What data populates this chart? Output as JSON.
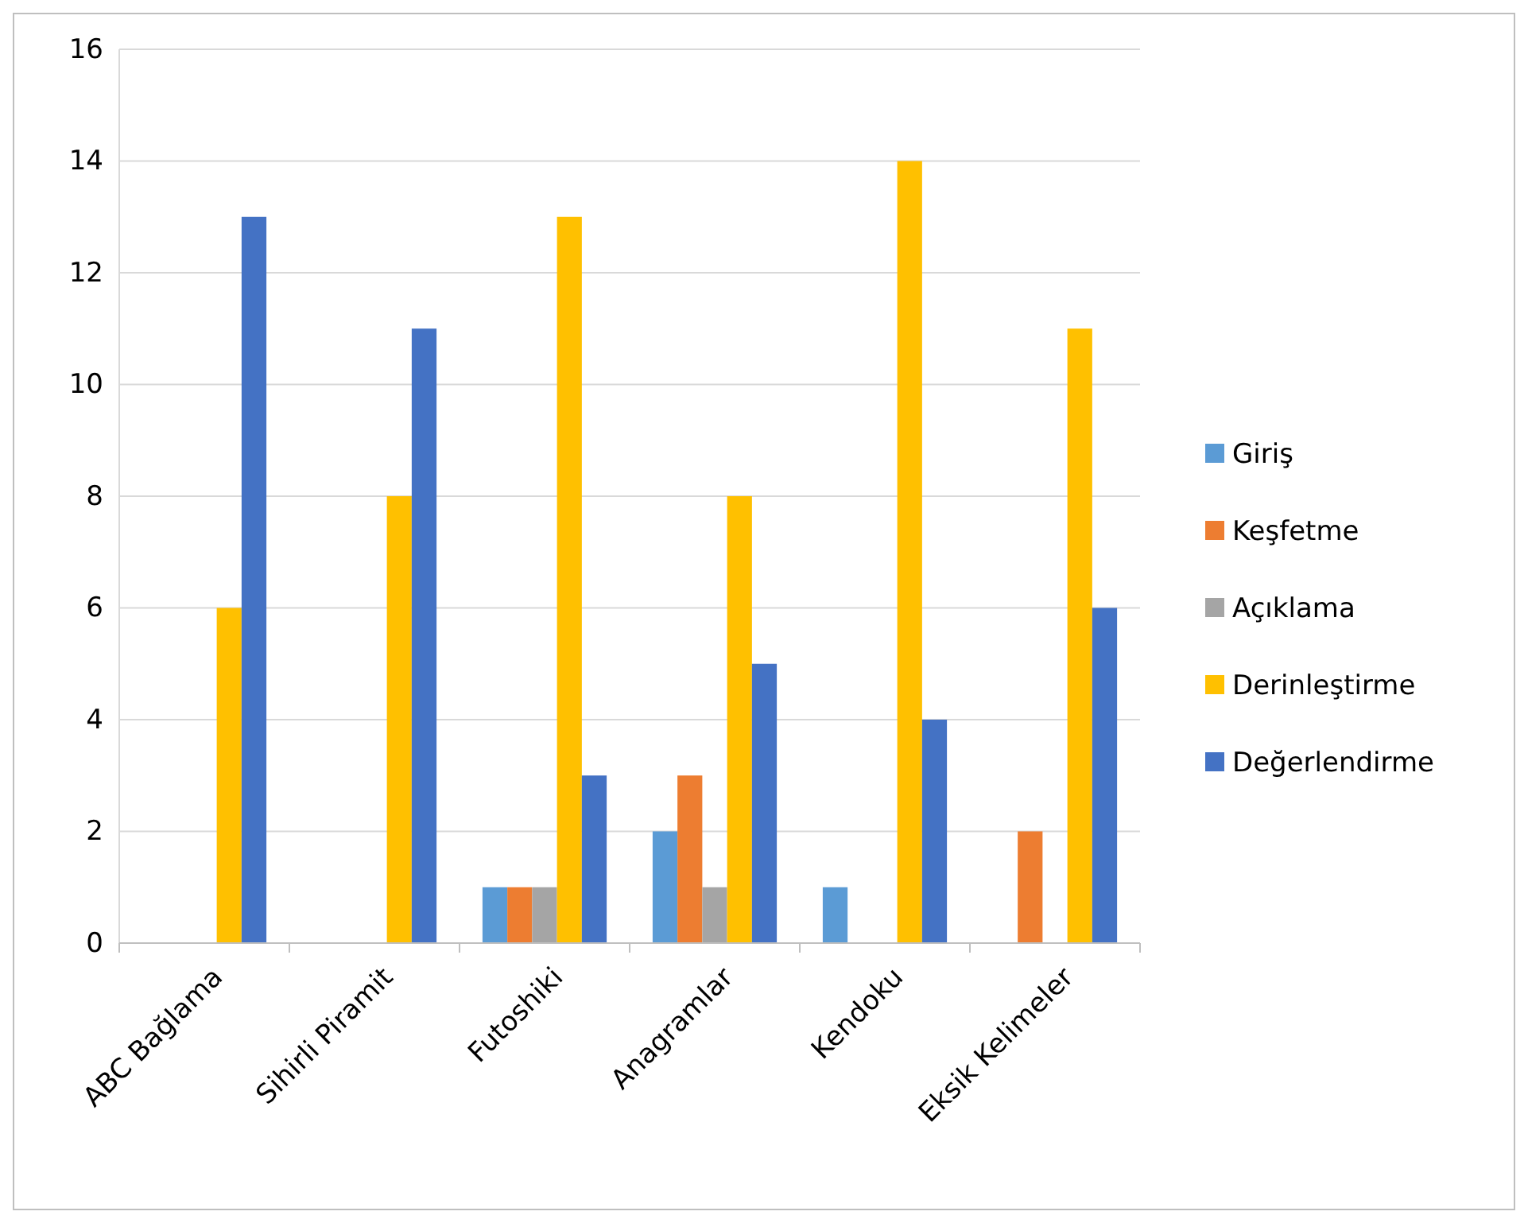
{
  "chart_data": {
    "type": "bar",
    "categories": [
      "ABC Bağlama",
      "Sihirli Piramit",
      "Futoshiki",
      "Anagramlar",
      "Kendoku",
      "Eksik Kelimeler"
    ],
    "series": [
      {
        "name": "Giriş",
        "color": "#5b9bd5",
        "values": [
          0,
          0,
          1,
          2,
          1,
          0
        ]
      },
      {
        "name": "Keşfetme",
        "color": "#ed7d31",
        "values": [
          0,
          0,
          1,
          3,
          0,
          2
        ]
      },
      {
        "name": "Açıklama",
        "color": "#a5a5a5",
        "values": [
          0,
          0,
          1,
          1,
          0,
          0
        ]
      },
      {
        "name": "Derinleştirme",
        "color": "#ffc000",
        "values": [
          6,
          8,
          13,
          8,
          14,
          11
        ]
      },
      {
        "name": "Değerlendirme",
        "color": "#4472c4",
        "values": [
          13,
          11,
          3,
          5,
          4,
          6
        ]
      }
    ],
    "ylim": [
      0,
      16
    ],
    "yticks": [
      0,
      2,
      4,
      6,
      8,
      10,
      12,
      14,
      16
    ],
    "grid": "y",
    "legend": "right"
  }
}
